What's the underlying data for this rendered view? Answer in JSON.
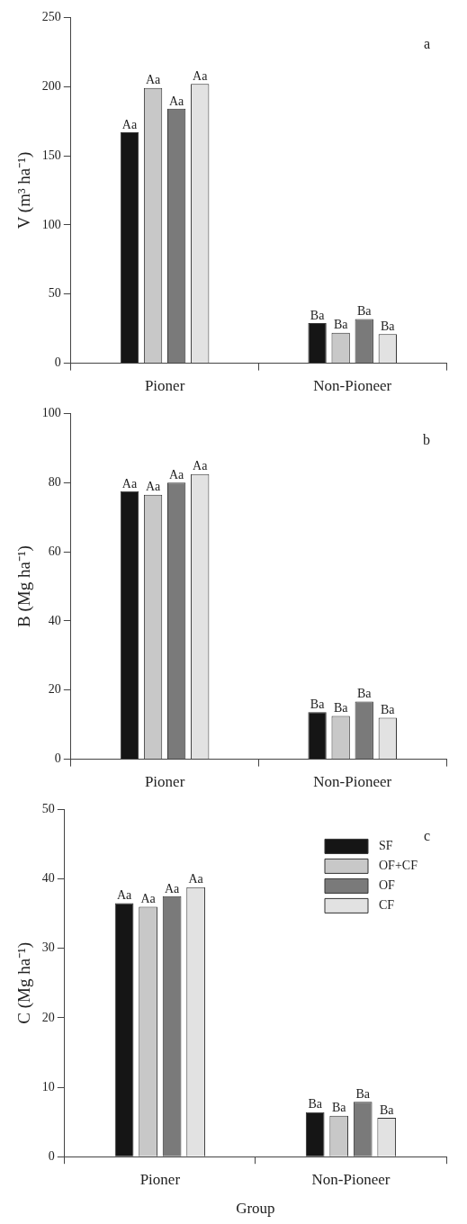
{
  "chart_data": [
    {
      "type": "bar",
      "ylabel": "V (m³ ha⁻¹)",
      "categories": [
        "Pioner",
        "Non-Pioneer"
      ],
      "ylim": [
        0,
        250
      ],
      "yticks": [
        0,
        50,
        100,
        150,
        200,
        250
      ],
      "grid": false,
      "annotations": [
        "a"
      ],
      "series": [
        {
          "color": "#151515",
          "values": [
            167,
            29
          ],
          "value_labels": [
            "Aa",
            "Ba"
          ]
        },
        {
          "color": "#c8c8c8",
          "values": [
            199,
            22
          ],
          "value_labels": [
            "Aa",
            "Ba"
          ]
        },
        {
          "color": "#7a7a7a",
          "values": [
            184,
            32
          ],
          "value_labels": [
            "Aa",
            "Ba"
          ]
        },
        {
          "color": "#e2e2e2",
          "values": [
            202,
            21
          ],
          "value_labels": [
            "Aa",
            "Ba"
          ]
        }
      ]
    },
    {
      "type": "bar",
      "ylabel": "B (Mg ha⁻¹)",
      "categories": [
        "Pioner",
        "Non-Pioneer"
      ],
      "ylim": [
        0,
        100
      ],
      "yticks": [
        0,
        20,
        40,
        60,
        80,
        100
      ],
      "grid": false,
      "annotations": [
        "b"
      ],
      "series": [
        {
          "color": "#151515",
          "values": [
            77.5,
            13.6
          ],
          "value_labels": [
            "Aa",
            "Ba"
          ]
        },
        {
          "color": "#c8c8c8",
          "values": [
            76.5,
            12.5
          ],
          "value_labels": [
            "Aa",
            "Ba"
          ]
        },
        {
          "color": "#7a7a7a",
          "values": [
            80,
            16.7
          ],
          "value_labels": [
            "Aa",
            "Ba"
          ]
        },
        {
          "color": "#e2e2e2",
          "values": [
            82.5,
            12
          ],
          "value_labels": [
            "Aa",
            "Ba"
          ]
        }
      ]
    },
    {
      "type": "bar",
      "ylabel": "C (Mg ha⁻¹)",
      "xlabel": "Group",
      "categories": [
        "Pioner",
        "Non-Pioneer"
      ],
      "ylim": [
        0,
        50
      ],
      "yticks": [
        0,
        10,
        20,
        30,
        40,
        50
      ],
      "grid": false,
      "legend": "top right",
      "annotations": [
        "c"
      ],
      "series": [
        {
          "name": "SF",
          "color": "#151515",
          "values": [
            36.5,
            6.4
          ],
          "value_labels": [
            "Aa",
            "Ba"
          ]
        },
        {
          "name": "OF+CF",
          "color": "#c8c8c8",
          "values": [
            36,
            5.9
          ],
          "value_labels": [
            "Aa",
            "Ba"
          ]
        },
        {
          "name": "OF",
          "color": "#7a7a7a",
          "values": [
            37.5,
            7.9
          ],
          "value_labels": [
            "Aa",
            "Ba"
          ]
        },
        {
          "name": "CF",
          "color": "#e2e2e2",
          "values": [
            38.8,
            5.6
          ],
          "value_labels": [
            "Aa",
            "Ba"
          ]
        }
      ]
    }
  ]
}
